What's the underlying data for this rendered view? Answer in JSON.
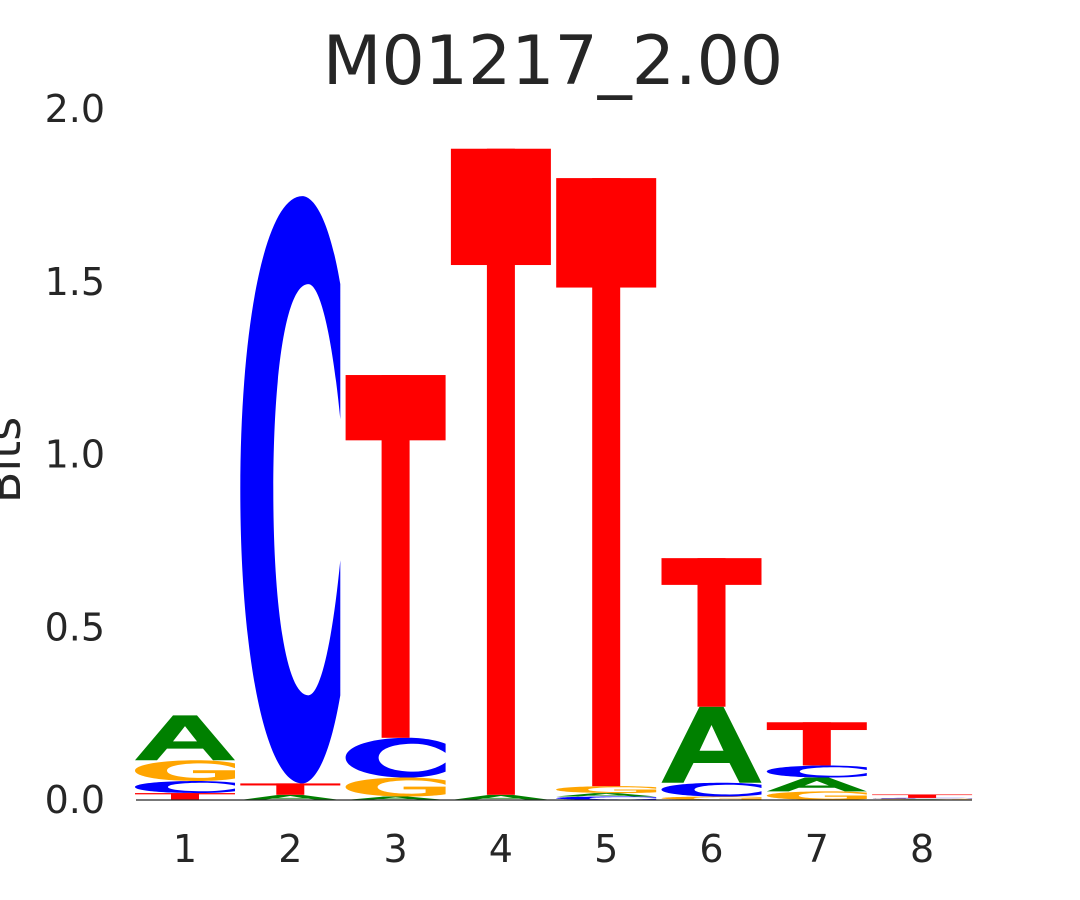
{
  "chart_data": {
    "type": "sequence_logo",
    "title": "M01217_2.00",
    "ylabel": "Bits",
    "ylim": [
      0,
      2.0
    ],
    "yticks": [
      "0.0",
      "0.5",
      "1.0",
      "1.5",
      "2.0"
    ],
    "positions": [
      "1",
      "2",
      "3",
      "4",
      "5",
      "6",
      "7",
      "8"
    ],
    "colors": {
      "A": "#008000",
      "C": "#0000ff",
      "G": "#ffa500",
      "T": "#ff0000"
    },
    "stacks": [
      [
        {
          "base": "T",
          "value": 0.02
        },
        {
          "base": "C",
          "value": 0.035
        },
        {
          "base": "G",
          "value": 0.06
        },
        {
          "base": "A",
          "value": 0.13
        }
      ],
      [
        {
          "base": "A",
          "value": 0.015
        },
        {
          "base": "T",
          "value": 0.033
        },
        {
          "base": "C",
          "value": 1.7
        }
      ],
      [
        {
          "base": "A",
          "value": 0.01
        },
        {
          "base": "G",
          "value": 0.055
        },
        {
          "base": "C",
          "value": 0.115
        },
        {
          "base": "T",
          "value": 1.05
        }
      ],
      [
        {
          "base": "A",
          "value": 0.015
        },
        {
          "base": "T",
          "value": 1.87
        }
      ],
      [
        {
          "base": "C",
          "value": 0.01
        },
        {
          "base": "A",
          "value": 0.01
        },
        {
          "base": "G",
          "value": 0.02
        },
        {
          "base": "T",
          "value": 1.76
        }
      ],
      [
        {
          "base": "G",
          "value": 0.01
        },
        {
          "base": "C",
          "value": 0.04
        },
        {
          "base": "A",
          "value": 0.22
        },
        {
          "base": "T",
          "value": 0.43
        }
      ],
      [
        {
          "base": "G",
          "value": 0.025
        },
        {
          "base": "A",
          "value": 0.04
        },
        {
          "base": "C",
          "value": 0.035
        },
        {
          "base": "T",
          "value": 0.125
        }
      ],
      [
        {
          "base": "A",
          "value": 0.002
        },
        {
          "base": "G",
          "value": 0.002
        },
        {
          "base": "C",
          "value": 0.002
        },
        {
          "base": "T",
          "value": 0.01
        }
      ]
    ]
  }
}
